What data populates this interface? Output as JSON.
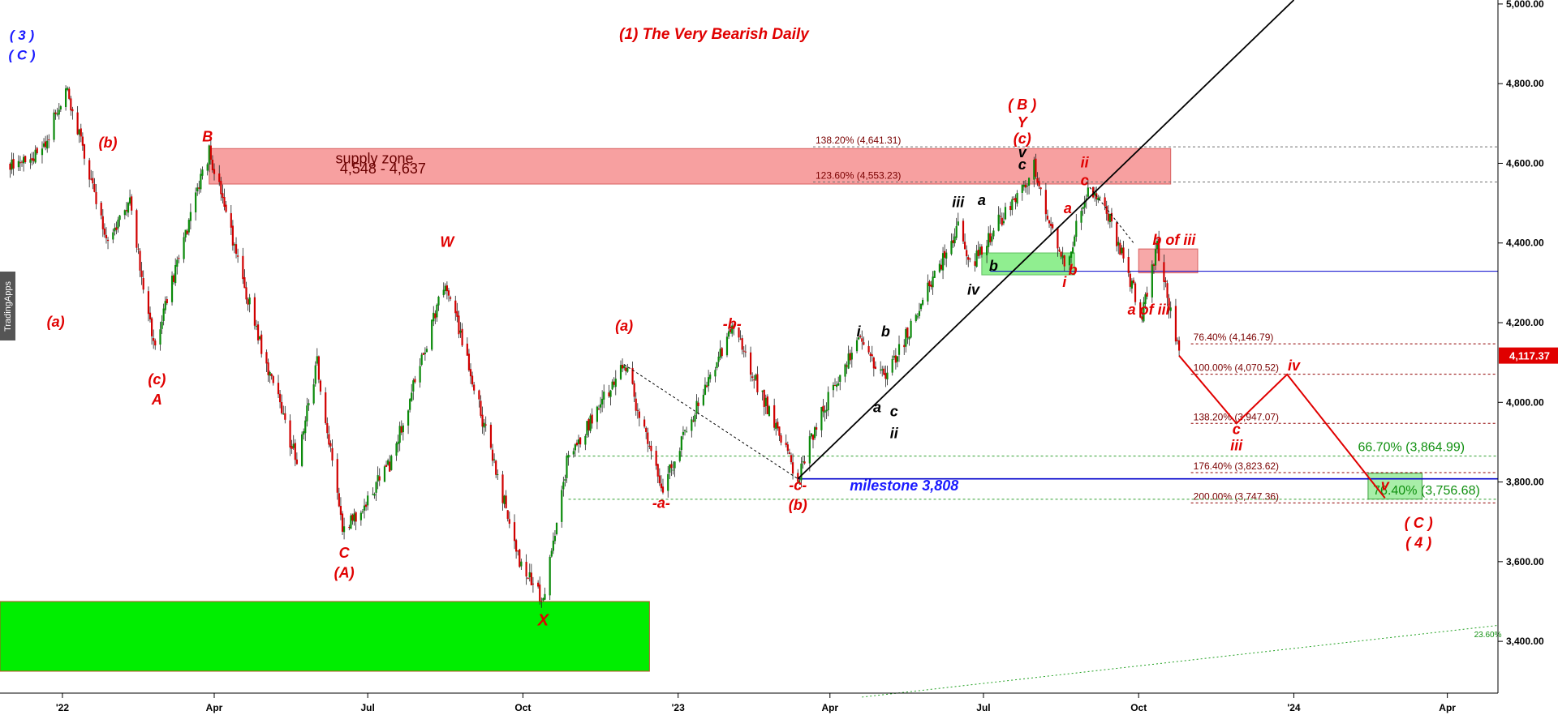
{
  "chart_data": {
    "type": "candlestick",
    "title": "(1) The Very Bearish Daily",
    "watermark": "TradingApps",
    "y_axis": {
      "ticks": [
        "5,000.00",
        "4,800.00",
        "4,600.00",
        "4,400.00",
        "4,200.00",
        "4,000.00",
        "3,800.00",
        "3,600.00",
        "3,400.00"
      ],
      "tick_values": [
        5000,
        4800,
        4600,
        4400,
        4200,
        4000,
        3800,
        3600,
        3400
      ],
      "range": [
        3270,
        5010
      ],
      "last_price_label": "4,117.37",
      "last_price": 4117.37,
      "last_price_color": "#e00000"
    },
    "x_axis": {
      "ticks": [
        "'22",
        "Apr",
        "Jul",
        "Oct",
        "'23",
        "Apr",
        "Jul",
        "Oct",
        "'24",
        "Apr"
      ],
      "tick_values": [
        "2022-01-01",
        "2022-04-01",
        "2022-07-01",
        "2022-10-01",
        "2023-01-01",
        "2023-04-01",
        "2023-07-01",
        "2023-10-01",
        "2024-01-01",
        "2024-04-01"
      ],
      "range": [
        "2021-11-25",
        "2024-05-01"
      ]
    },
    "price_anchors": [
      [
        "2021-12-01",
        4600
      ],
      [
        "2021-12-20",
        4620
      ],
      [
        "2022-01-03",
        4800
      ],
      [
        "2022-01-28",
        4400
      ],
      [
        "2022-02-10",
        4500
      ],
      [
        "2022-02-24",
        4140
      ],
      [
        "2022-03-29",
        4630
      ],
      [
        "2022-04-26",
        4180
      ],
      [
        "2022-05-20",
        3850
      ],
      [
        "2022-06-01",
        4100
      ],
      [
        "2022-06-16",
        3670
      ],
      [
        "2022-07-15",
        3850
      ],
      [
        "2022-08-16",
        4310
      ],
      [
        "2022-09-30",
        3590
      ],
      [
        "2022-10-13",
        3500
      ],
      [
        "2022-10-27",
        3850
      ],
      [
        "2022-11-30",
        4100
      ],
      [
        "2022-12-22",
        3780
      ],
      [
        "2023-02-02",
        4190
      ],
      [
        "2023-03-13",
        3810
      ],
      [
        "2023-03-24",
        3950
      ],
      [
        "2023-04-18",
        4160
      ],
      [
        "2023-05-04",
        4060
      ],
      [
        "2023-06-16",
        4440
      ],
      [
        "2023-06-23",
        4340
      ],
      [
        "2023-07-31",
        4590
      ],
      [
        "2023-08-18",
        4335
      ],
      [
        "2023-09-01",
        4540
      ],
      [
        "2023-09-15",
        4450
      ],
      [
        "2023-10-03",
        4220
      ],
      [
        "2023-10-12",
        4390
      ],
      [
        "2023-10-25",
        4117.37
      ]
    ],
    "rects": [
      {
        "name": "supply-zone",
        "x0": "2022-03-29",
        "x1": "2023-10-20",
        "y0": 4548,
        "y1": 4637,
        "fill": "#f7a0a0",
        "stroke": "#d86060"
      },
      {
        "name": "demand-zone-2022",
        "x0": "2021-11-25",
        "x1": "2022-12-15",
        "y0": 3325,
        "y1": 3500,
        "fill": "#00ee00",
        "stroke": "#b05020"
      },
      {
        "name": "green-zone-b",
        "x0": "2023-06-30",
        "x1": "2023-08-24",
        "y0": 4320,
        "y1": 4375,
        "fill": "#90ee90",
        "stroke": "#60c060"
      },
      {
        "name": "pink-zone-b-of-iii",
        "x0": "2023-10-01",
        "x1": "2023-11-05",
        "y0": 4325,
        "y1": 4385,
        "fill": "#f7a8a8",
        "stroke": "#d86060"
      },
      {
        "name": "target-zone",
        "x0": "2024-02-14",
        "x1": "2024-03-17",
        "y0": 3757,
        "y1": 3822,
        "fill": "#a8eea8",
        "stroke": "#40a040"
      }
    ],
    "hlines": [
      {
        "name": "milestone-line",
        "y": 3808,
        "x0": "2023-03-13",
        "x1": "2024-05-01",
        "color": "#0000cc",
        "width": 1.6
      },
      {
        "name": "support-4329",
        "y": 4329,
        "x0": "2023-07-05",
        "x1": "2024-05-01",
        "color": "#0000cc",
        "width": 1
      }
    ],
    "fib_levels": [
      {
        "label": "138.20% (4,641.31)",
        "y": 4641.31,
        "x0": "2023-03-22",
        "x1": "2024-05-01",
        "tx": "2023-03-22",
        "color": "#707070"
      },
      {
        "label": "123.60% (4,553.23)",
        "y": 4553.23,
        "x0": "2023-03-22",
        "x1": "2024-05-01",
        "tx": "2023-03-22",
        "color": "#707070"
      },
      {
        "label": "76.40% (4,146.79)",
        "y": 4146.79,
        "x0": "2023-11-01",
        "x1": "2024-05-01",
        "tx": "2023-11-01",
        "color": "#900000"
      },
      {
        "label": "100.00% (4,070.52)",
        "y": 4070.52,
        "x0": "2023-11-01",
        "x1": "2024-05-01",
        "tx": "2023-11-01",
        "color": "#900000"
      },
      {
        "label": "138.20% (3,947.07)",
        "y": 3947.07,
        "x0": "2023-11-01",
        "x1": "2024-05-01",
        "tx": "2023-11-01",
        "color": "#900000"
      },
      {
        "label": "176.40% (3,823.62)",
        "y": 3823.62,
        "x0": "2023-11-01",
        "x1": "2024-05-01",
        "tx": "2023-11-01",
        "color": "#900000"
      },
      {
        "label": "200.00% (3,747.36)",
        "y": 3747.36,
        "x0": "2023-11-01",
        "x1": "2024-05-01",
        "tx": "2023-11-01",
        "color": "#900000"
      }
    ],
    "green_fibs": [
      {
        "label": "66.70% (3,864.99)",
        "y": 3864.99,
        "x0": "2022-10-28",
        "x1": "2024-05-01",
        "tx": "2024-02-08"
      },
      {
        "label": "76.40% (3,756.68)",
        "y": 3756.68,
        "x0": "2022-10-28",
        "x1": "2024-05-01",
        "tx": "2024-02-17"
      }
    ],
    "lines": [
      {
        "name": "trend-line",
        "points": [
          [
            "2023-03-13",
            3808
          ],
          [
            "2024-01-01",
            5010
          ]
        ],
        "color": "#000000",
        "width": 1.8,
        "dash": ""
      },
      {
        "name": "dotted-line-a-c",
        "points": [
          [
            "2022-11-30",
            4095
          ],
          [
            "2023-03-13",
            3808
          ]
        ],
        "color": "#000000",
        "width": 1,
        "dash": "3,3"
      },
      {
        "name": "dotted-line-ii-iii",
        "points": [
          [
            "2023-09-02",
            4540
          ],
          [
            "2023-09-28",
            4400
          ]
        ],
        "color": "#000000",
        "width": 1,
        "dash": "3,3"
      },
      {
        "name": "long-term-trend-line",
        "points": [
          [
            "2023-04-20",
            3260
          ],
          [
            "2024-05-01",
            3440
          ]
        ],
        "color": "#20a020",
        "width": 1,
        "dash": "2,3"
      },
      {
        "name": "projection-path",
        "points": [
          [
            "2023-10-25",
            4117
          ],
          [
            "2023-11-28",
            3947
          ],
          [
            "2023-12-28",
            4070
          ],
          [
            "2024-02-24",
            3760
          ]
        ],
        "color": "#e00000",
        "width": 2,
        "dash": ""
      }
    ],
    "text_labels": [
      {
        "text": "supply zone",
        "x": "2022-07-05",
        "y": 4600,
        "size": 18,
        "style": "maroon"
      },
      {
        "text": "4,548 - 4,637",
        "x": "2022-07-10",
        "y": 4575,
        "size": 18,
        "style": "maroon"
      },
      {
        "text": "milestone 3,808",
        "x": "2023-05-15",
        "y": 3779,
        "size": 18,
        "style": "blue"
      },
      {
        "text": "23.60%",
        "x": "2024-04-25",
        "y": 3410,
        "size": 10,
        "style": "green-small"
      },
      {
        "text": "( 3 )",
        "x": "2021-12-08",
        "y": 4910,
        "size": 17,
        "style": "blue"
      },
      {
        "text": "( C )",
        "x": "2021-12-08",
        "y": 4860,
        "size": 17,
        "style": "blue"
      },
      {
        "text": "( B )",
        "x": "2023-07-24",
        "y": 4735,
        "size": 18,
        "style": "red"
      },
      {
        "text": "Y",
        "x": "2023-07-24",
        "y": 4690,
        "size": 18,
        "style": "red"
      },
      {
        "text": "(c)",
        "x": "2023-07-24",
        "y": 4650,
        "size": 18,
        "style": "red"
      },
      {
        "text": "B",
        "x": "2022-03-28",
        "y": 4655,
        "size": 18,
        "style": "red"
      },
      {
        "text": "(b)",
        "x": "2022-01-28",
        "y": 4640,
        "size": 18,
        "style": "red"
      },
      {
        "text": "(a)",
        "x": "2021-12-28",
        "y": 4190,
        "size": 18,
        "style": "red"
      },
      {
        "text": "(c)",
        "x": "2022-02-26",
        "y": 4045,
        "size": 18,
        "style": "red"
      },
      {
        "text": "A",
        "x": "2022-02-26",
        "y": 3995,
        "size": 18,
        "style": "red"
      },
      {
        "text": "W",
        "x": "2022-08-17",
        "y": 4390,
        "size": 18,
        "style": "red"
      },
      {
        "text": "C",
        "x": "2022-06-17",
        "y": 3610,
        "size": 18,
        "style": "red"
      },
      {
        "text": "(A)",
        "x": "2022-06-17",
        "y": 3560,
        "size": 18,
        "style": "red"
      },
      {
        "text": "X",
        "x": "2022-10-13",
        "y": 3440,
        "size": 20,
        "style": "red"
      },
      {
        "text": "(a)",
        "x": "2022-11-30",
        "y": 4180,
        "size": 18,
        "style": "red"
      },
      {
        "text": "-b-",
        "x": "2023-02-02",
        "y": 4185,
        "size": 18,
        "style": "red"
      },
      {
        "text": "-a-",
        "x": "2022-12-22",
        "y": 3735,
        "size": 18,
        "style": "red"
      },
      {
        "text": "-c-",
        "x": "2023-03-13",
        "y": 3780,
        "size": 18,
        "style": "red"
      },
      {
        "text": "(b)",
        "x": "2023-03-13",
        "y": 3730,
        "size": 18,
        "style": "red"
      },
      {
        "text": "i",
        "x": "2023-04-18",
        "y": 4165,
        "size": 18,
        "style": "black"
      },
      {
        "text": "b",
        "x": "2023-05-04",
        "y": 4165,
        "size": 18,
        "style": "black"
      },
      {
        "text": "a",
        "x": "2023-04-29",
        "y": 3975,
        "size": 18,
        "style": "black"
      },
      {
        "text": "c",
        "x": "2023-05-09",
        "y": 3965,
        "size": 18,
        "style": "black"
      },
      {
        "text": "ii",
        "x": "2023-05-09",
        "y": 3910,
        "size": 18,
        "style": "black"
      },
      {
        "text": "iii",
        "x": "2023-06-16",
        "y": 4490,
        "size": 18,
        "style": "black"
      },
      {
        "text": "a",
        "x": "2023-06-30",
        "y": 4495,
        "size": 18,
        "style": "black"
      },
      {
        "text": "b",
        "x": "2023-07-07",
        "y": 4330,
        "size": 18,
        "style": "black"
      },
      {
        "text": "iv",
        "x": "2023-06-25",
        "y": 4270,
        "size": 18,
        "style": "black"
      },
      {
        "text": "v",
        "x": "2023-07-24",
        "y": 4615,
        "size": 18,
        "style": "black"
      },
      {
        "text": "c",
        "x": "2023-07-24",
        "y": 4585,
        "size": 18,
        "style": "black"
      },
      {
        "text": "ii",
        "x": "2023-08-30",
        "y": 4590,
        "size": 18,
        "style": "red"
      },
      {
        "text": "c",
        "x": "2023-08-30",
        "y": 4545,
        "size": 18,
        "style": "red"
      },
      {
        "text": "a",
        "x": "2023-08-20",
        "y": 4475,
        "size": 18,
        "style": "red"
      },
      {
        "text": "i",
        "x": "2023-08-18",
        "y": 4290,
        "size": 18,
        "style": "red"
      },
      {
        "text": "b",
        "x": "2023-08-23",
        "y": 4320,
        "size": 18,
        "style": "red"
      },
      {
        "text": "b of iii",
        "x": "2023-10-22",
        "y": 4395,
        "size": 18,
        "style": "red"
      },
      {
        "text": "a of iii",
        "x": "2023-10-07",
        "y": 4220,
        "size": 18,
        "style": "red"
      },
      {
        "text": "c",
        "x": "2023-11-28",
        "y": 3920,
        "size": 18,
        "style": "red"
      },
      {
        "text": "iii",
        "x": "2023-11-28",
        "y": 3880,
        "size": 18,
        "style": "red"
      },
      {
        "text": "iv",
        "x": "2024-01-01",
        "y": 4080,
        "size": 18,
        "style": "red"
      },
      {
        "text": "v",
        "x": "2024-02-24",
        "y": 3780,
        "size": 18,
        "style": "red"
      },
      {
        "text": "( C )",
        "x": "2024-03-15",
        "y": 3685,
        "size": 18,
        "style": "red"
      },
      {
        "text": "( 4 )",
        "x": "2024-03-15",
        "y": 3635,
        "size": 18,
        "style": "red"
      }
    ]
  }
}
